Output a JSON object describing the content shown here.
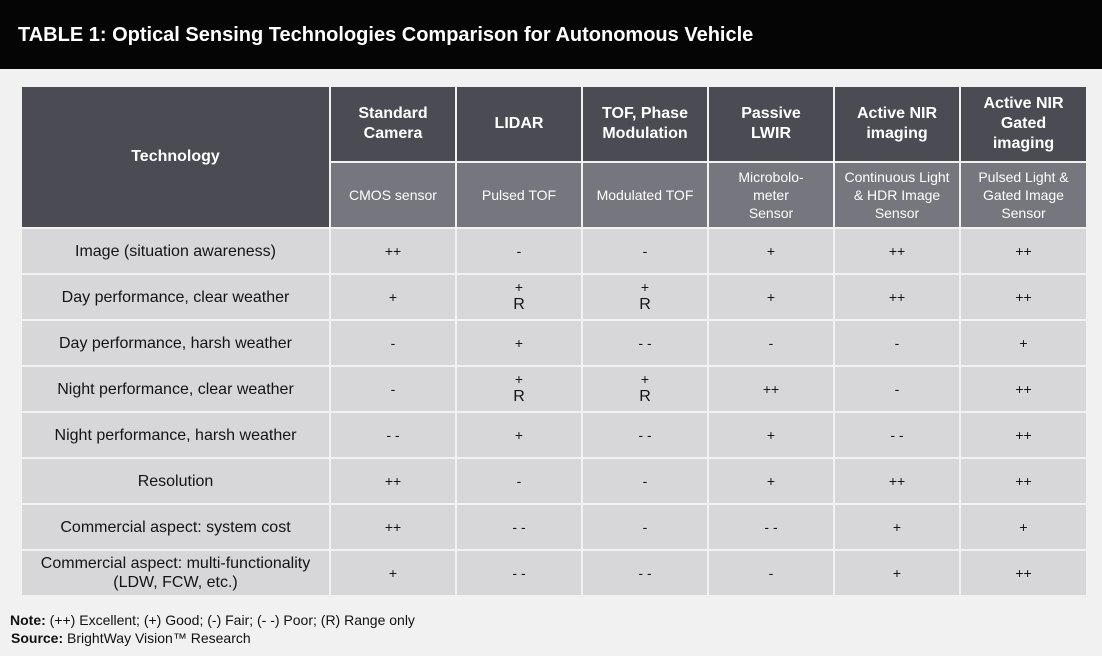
{
  "title": "TABLE 1: Optical Sensing Technologies Comparison for Autonomous Vehicle",
  "table": {
    "corner_header": "Technology",
    "columns": [
      {
        "name": "Standard Camera",
        "sub": "CMOS sensor"
      },
      {
        "name": "LIDAR",
        "sub": "Pulsed TOF"
      },
      {
        "name": "TOF, Phase Modulation",
        "sub": "Modulated TOF"
      },
      {
        "name": "Passive LWIR",
        "sub": "Microbolo-meter Sensor"
      },
      {
        "name": "Active NIR imaging",
        "sub": "Continuous Light & HDR Image Sensor"
      },
      {
        "name": "Active NIR Gated imaging",
        "sub": "Pulsed Light & Gated Image Sensor"
      }
    ],
    "rows": [
      {
        "label": "Image (situation awareness)",
        "values": [
          "++",
          "-",
          "-",
          "+",
          "++",
          "++"
        ]
      },
      {
        "label": "Day performance, clear weather",
        "values": [
          "+",
          "+\nR",
          "+\nR",
          "+",
          "++",
          "++"
        ]
      },
      {
        "label": "Day performance, harsh weather",
        "values": [
          "-",
          "+",
          "- -",
          "-",
          "-",
          "+"
        ]
      },
      {
        "label": "Night performance, clear weather",
        "values": [
          "-",
          "+\nR",
          "+\nR",
          "++",
          "-",
          "++"
        ]
      },
      {
        "label": "Night performance, harsh weather",
        "values": [
          "- -",
          "+",
          "- -",
          "+",
          "- -",
          "++"
        ]
      },
      {
        "label": "Resolution",
        "values": [
          "++",
          "-",
          "-",
          "+",
          "++",
          "++"
        ]
      },
      {
        "label": "Commercial aspect: system cost",
        "values": [
          "++",
          "- -",
          "-",
          "- -",
          "+",
          "+"
        ]
      },
      {
        "label": "Commercial aspect: multi-functionality (LDW, FCW, etc.)",
        "values": [
          "+",
          "- -",
          "- -",
          "-",
          "+",
          "++"
        ]
      }
    ]
  },
  "note": {
    "label": "Note:",
    "text": " (++) Excellent; (+) Good; (-) Fair; (- -) Poor; (R) Range only"
  },
  "source": {
    "label": "Source:",
    "text": " BrightWay Vision™ Research"
  }
}
